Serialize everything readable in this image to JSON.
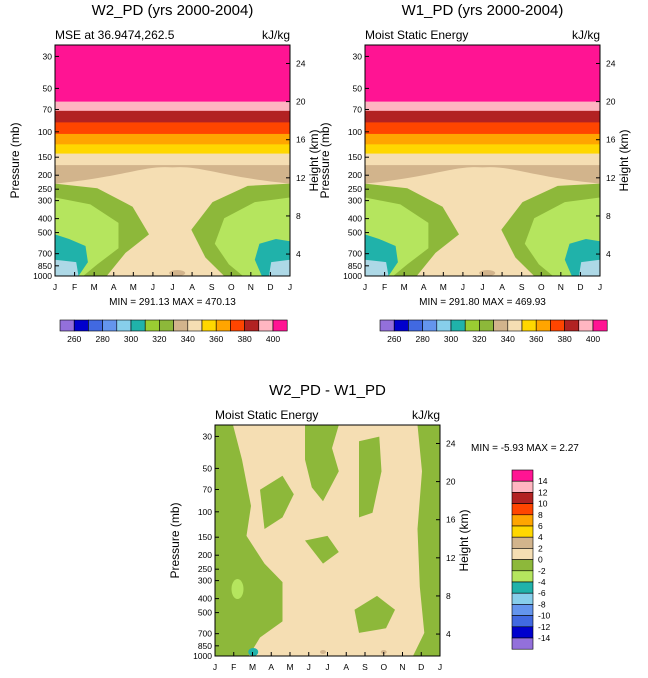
{
  "palette": [
    "#9370DB",
    "#0000CD",
    "#4169E1",
    "#6495ED",
    "#87CEEB",
    "#20B2AA",
    "#9ACD32",
    "#8DB83A",
    "#D2B48C",
    "#F5DEB3",
    "#FFD700",
    "#FFA500",
    "#FF4500",
    "#B22222",
    "#FFB6C1",
    "#FF1493"
  ],
  "months": [
    "J",
    "F",
    "M",
    "A",
    "M",
    "J",
    "J",
    "A",
    "S",
    "O",
    "N",
    "D",
    "J"
  ],
  "pressure_ticks": [
    "30",
    "50",
    "70",
    "100",
    "150",
    "200",
    "250",
    "300",
    "400",
    "500",
    "700",
    "850",
    "1000"
  ],
  "height_ticks_top": [
    "24",
    "20",
    "16",
    "12",
    "8",
    "4"
  ],
  "height_ticks_diff": [
    "24",
    "20",
    "16",
    "12",
    "8",
    "4"
  ],
  "chart_data": [
    {
      "type": "heatmap",
      "title": "W2_PD (yrs 2000-2004)",
      "left_subtitle": "MSE at 36.9474,262.5",
      "right_subtitle": "kJ/kg",
      "ylabel": "Pressure (mb)",
      "ylabel_right": "Height (km)",
      "stats": "MIN = 291.13 MAX = 470.13",
      "bands_top_to_bottom_kJkg": [
        ">400",
        "390-400",
        "380-390",
        "370-380",
        "360-370",
        "350-360",
        "340-350",
        "330-340",
        "320-330",
        "310-320",
        "300-310",
        "290-300"
      ]
    },
    {
      "type": "heatmap",
      "title": "W1_PD (yrs 2000-2004)",
      "left_subtitle": "Moist Static Energy",
      "right_subtitle": "kJ/kg",
      "ylabel": "Pressure (mb)",
      "ylabel_right": "Height (km)",
      "stats": "MIN = 291.80 MAX = 469.93",
      "bands_top_to_bottom_kJkg": [
        ">400",
        "390-400",
        "380-390",
        "370-380",
        "360-370",
        "350-360",
        "340-350",
        "330-340",
        "320-330",
        "310-320",
        "300-310",
        "290-300"
      ]
    },
    {
      "type": "heatmap",
      "title": "W2_PD - W1_PD",
      "left_subtitle": "Moist Static Energy",
      "right_subtitle": "kJ/kg",
      "ylabel": "Pressure (mb)",
      "ylabel_right": "Height (km)",
      "stats": "MIN =  -5.93 MAX =   2.27",
      "dominant_bins": [
        "0 to 2",
        "-2 to 0",
        "-4 to -2",
        "-6 to -4"
      ]
    }
  ],
  "top_colorbar": {
    "labels": [
      "260",
      "280",
      "300",
      "320",
      "340",
      "360",
      "380",
      "400"
    ]
  },
  "diff_colorbar": {
    "labels": [
      "14",
      "12",
      "10",
      "8",
      "6",
      "4",
      "2",
      "0",
      "-2",
      "-4",
      "-6",
      "-8",
      "-10",
      "-12",
      "-14"
    ],
    "colors": [
      "#FF1493",
      "#FFB6C1",
      "#B22222",
      "#FF4500",
      "#FFA500",
      "#FFD700",
      "#D2B48C",
      "#F5DEB3",
      "#8DB83A",
      "#B5E55E",
      "#20B2AA",
      "#87CEEB",
      "#6495ED",
      "#4169E1",
      "#0000CD",
      "#9370DB"
    ]
  }
}
